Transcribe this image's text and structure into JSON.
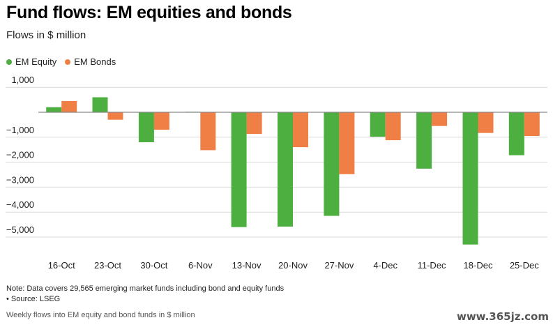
{
  "title": "Fund flows: EM equities and bonds",
  "subtitle": "Flows in $ million",
  "note": "Note: Data covers 29,565 emerging market funds including bond and equity funds",
  "source": "• Source: LSEG",
  "caption": "Weekly flows into EM equity and bond funds in $ million",
  "watermark": "www.365jz.com",
  "colors": {
    "equity": "#4caf3f",
    "bonds": "#ef7f45",
    "grid": "#d9d9d9",
    "zero": "#888888"
  },
  "chart_data": {
    "type": "bar",
    "categories": [
      "16-Oct",
      "23-Oct",
      "30-Oct",
      "6-Nov",
      "13-Nov",
      "20-Nov",
      "27-Nov",
      "4-Dec",
      "11-Dec",
      "18-Dec",
      "25-Dec"
    ],
    "series": [
      {
        "name": "EM Equity",
        "values": [
          200,
          600,
          -1200,
          20,
          -4600,
          -4580,
          -4150,
          -980,
          -2260,
          -5300,
          -1720
        ]
      },
      {
        "name": "EM Bonds",
        "values": [
          450,
          -300,
          -700,
          -1520,
          -870,
          -1400,
          -2480,
          -1120,
          -550,
          -830,
          -950
        ]
      }
    ],
    "yticks": [
      {
        "value": 1000,
        "label": "1,000"
      },
      {
        "value": 0,
        "label": ""
      },
      {
        "value": -1000,
        "label": "−1,000"
      },
      {
        "value": -2000,
        "label": "−2,000"
      },
      {
        "value": -3000,
        "label": "−3,000"
      },
      {
        "value": -4000,
        "label": "−4,000"
      },
      {
        "value": -5000,
        "label": "−5,000"
      }
    ],
    "ylim": [
      -6000,
      1000
    ],
    "grid": true,
    "legend_position": "top-left"
  }
}
